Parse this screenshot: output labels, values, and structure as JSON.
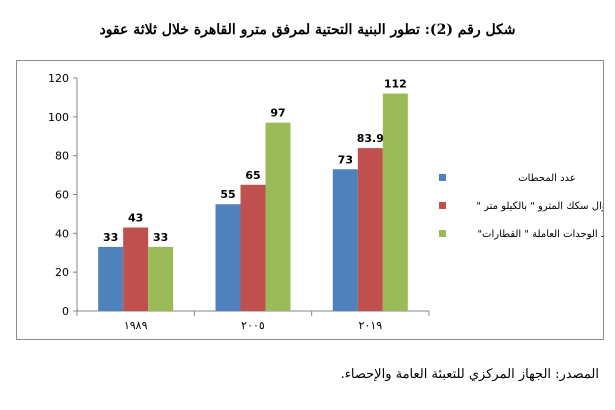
{
  "title": "شكل رقم (2): تطور البنية التحتية لمرفق مترو القاهرة خلال ثلاثة عقود",
  "source": "المصدر: الجهاز المركزي للتعبئة العامة والإحصاء.",
  "chart_data": {
    "type": "bar",
    "title": "شكل رقم (2): تطور البنية التحتية لمرفق مترو القاهرة خلال ثلاثة عقود",
    "categories": [
      "١٩٨٩",
      "٢٠٠٥",
      "٢٠١٩"
    ],
    "series": [
      {
        "name": "عدد المحطات",
        "values": [
          33,
          55,
          73
        ],
        "labels": [
          "33",
          "55",
          "73"
        ],
        "color": "#4f81bd"
      },
      {
        "name": "أطوال سكك المترو \" بالكيلو متر \"",
        "values": [
          43,
          65,
          83.9
        ],
        "labels": [
          "43",
          "65",
          "83.9"
        ],
        "color": "#c0504d"
      },
      {
        "name": "عدد الوحدات العاملة \" القطارات\"",
        "values": [
          33,
          97,
          112
        ],
        "labels": [
          "33",
          "97",
          "112"
        ],
        "color": "#9bbb59"
      }
    ],
    "ylim": [
      0,
      120
    ],
    "yticks": [
      "0",
      "20",
      "40",
      "60",
      "80",
      "100",
      "120"
    ],
    "grid": false,
    "legend_position": "right"
  }
}
